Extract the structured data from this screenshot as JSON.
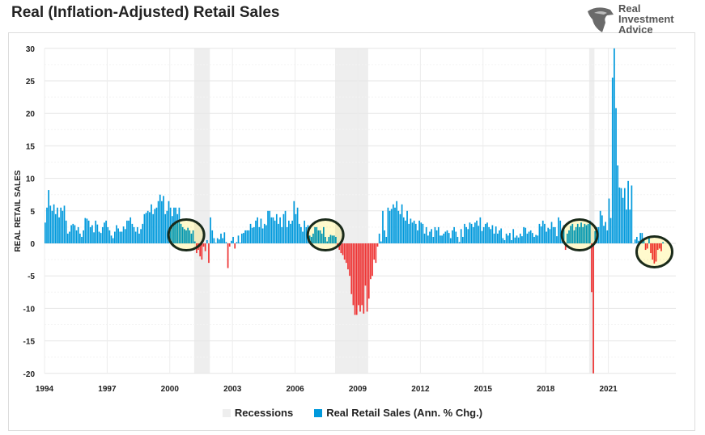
{
  "logo_text": [
    "Real",
    "Investment",
    "Advice"
  ],
  "chart_data": {
    "type": "bar",
    "title": "Real (Inflation-Adjusted) Retail Sales",
    "ylabel": "REAL RETAIL SALES",
    "xlabel": "",
    "ylim": [
      -20,
      30
    ],
    "yticks": [
      30,
      25,
      20,
      15,
      10,
      5,
      0,
      -5,
      -10,
      -15,
      -20
    ],
    "xticks": [
      "1994",
      "1997",
      "2000",
      "2003",
      "2006",
      "2009",
      "2012",
      "2015",
      "2018",
      "2021"
    ],
    "grid": true,
    "legend_position": "bottom",
    "legend": [
      "Recessions",
      "Real Retail Sales (Ann. % Chg.)"
    ],
    "colors": {
      "positive": "#0099dc",
      "negative": "#ee3333",
      "recession": "#eeeeee",
      "highlight_fill": "#fffacd",
      "highlight_stroke": "#1a2a1a"
    },
    "start": "1994-01",
    "frequency": "monthly",
    "recessions": [
      [
        "2001-03",
        "2001-11"
      ],
      [
        "2007-12",
        "2009-06"
      ],
      [
        "2020-02",
        "2020-04"
      ]
    ],
    "highlighted_periods": [
      "2000-10",
      "2007-06",
      "2019-08",
      "2023-03"
    ],
    "values": [
      3.2,
      5.5,
      8.2,
      5.8,
      5.0,
      6.0,
      4.5,
      5.5,
      4.0,
      5.5,
      5.0,
      5.8,
      3.5,
      1.5,
      1.8,
      2.8,
      3.0,
      2.8,
      2.0,
      2.5,
      1.5,
      1.0,
      2.0,
      3.9,
      3.8,
      3.5,
      2.5,
      2.8,
      1.7,
      3.5,
      2.9,
      1.8,
      1.6,
      2.5,
      3.2,
      3.5,
      2.5,
      2.0,
      1.2,
      0.8,
      1.8,
      2.8,
      2.3,
      1.8,
      1.8,
      2.6,
      2.2,
      3.5,
      3.5,
      4.0,
      3.0,
      2.5,
      1.8,
      2.5,
      1.5,
      2.2,
      3.0,
      4.5,
      4.7,
      5.0,
      4.8,
      6.0,
      4.5,
      5.3,
      5.5,
      6.5,
      7.5,
      6.5,
      7.3,
      4.5,
      5.0,
      6.5,
      5.5,
      4.2,
      5.5,
      5.5,
      4.5,
      5.5,
      3.0,
      2.5,
      2.2,
      2.0,
      2.4,
      2.0,
      1.5,
      2.0,
      0.3,
      -1.5,
      -1.0,
      -2.0,
      -2.5,
      -0.5,
      -1.2,
      0.5,
      -3.0,
      4.0,
      2.0,
      0.8,
      0.1,
      0.8,
      0.6,
      1.5,
      0.8,
      1.7,
      0.2,
      -3.8,
      -0.5,
      0.4,
      1.0,
      -0.8,
      0.2,
      1.2,
      0.1,
      1.5,
      1.6,
      2.0,
      2.0,
      2.0,
      3.0,
      2.4,
      2.5,
      3.5,
      4.0,
      2.5,
      3.8,
      2.3,
      3.0,
      2.8,
      5.0,
      5.0,
      4.0,
      4.0,
      3.5,
      4.5,
      3.0,
      4.0,
      2.5,
      4.5,
      5.0,
      2.5,
      3.5,
      3.0,
      3.5,
      6.5,
      4.5,
      5.5,
      3.0,
      2.5,
      1.8,
      3.5,
      2.5,
      2.8,
      1.2,
      1.0,
      1.5,
      2.5,
      2.5,
      2.0,
      2.0,
      1.5,
      2.5,
      1.0,
      0.3,
      1.0,
      1.3,
      1.2,
      1.2,
      1.0,
      -0.3,
      -1.0,
      -1.5,
      -1.8,
      -2.5,
      -3.0,
      -4.0,
      -5.0,
      -7.8,
      -9.5,
      -11.0,
      -11.0,
      -9.5,
      -10.5,
      -9.5,
      -10.8,
      -6.5,
      -10.5,
      -8.5,
      -5.5,
      -5.0,
      -2.5,
      -3.0,
      -0.5,
      1.5,
      0.3,
      5.0,
      2.0,
      1.0,
      5.5,
      5.0,
      5.3,
      6.0,
      5.5,
      6.5,
      5.0,
      4.5,
      6.0,
      4.0,
      3.5,
      5.0,
      3.0,
      3.8,
      3.2,
      3.5,
      3.0,
      2.0,
      3.5,
      3.2,
      3.0,
      1.5,
      2.5,
      1.2,
      1.8,
      2.2,
      1.0,
      2.5,
      2.0,
      2.5,
      1.2,
      1.2,
      1.5,
      1.8,
      2.0,
      1.6,
      0.8,
      2.0,
      2.5,
      1.8,
      1.0,
      0.2,
      2.2,
      1.0,
      3.0,
      2.5,
      2.2,
      3.2,
      3.0,
      2.5,
      3.2,
      3.5,
      2.7,
      4.0,
      1.9,
      2.5,
      3.0,
      3.2,
      2.5,
      2.2,
      2.8,
      1.5,
      2.6,
      1.5,
      2.0,
      2.3,
      0.8,
      0.5,
      1.5,
      1.2,
      1.6,
      0.5,
      2.2,
      0.9,
      1.2,
      0.9,
      1.5,
      1.1,
      2.5,
      2.4,
      1.5,
      1.8,
      2.0,
      1.6,
      1.0,
      1.3,
      1.2,
      3.0,
      2.6,
      3.5,
      3.0,
      1.8,
      2.4,
      2.2,
      3.3,
      2.5,
      2.5,
      1.1,
      4.0,
      3.5,
      2.0,
      2.8,
      -1.0,
      1.5,
      2.0,
      2.7,
      3.0,
      2.0,
      2.5,
      3.0,
      2.5,
      3.2,
      2.5,
      3.0,
      2.8,
      3.0,
      3.5,
      -7.5,
      -20.0,
      1.9,
      2.5,
      2.5,
      5.0,
      4.3,
      2.7,
      3.3,
      2.0,
      6.9,
      3.9,
      25.5,
      30.0,
      20.8,
      12.0,
      8.6,
      8.5,
      7.0,
      8.5,
      5.2,
      9.6,
      5.2,
      8.9,
      0.0,
      0.6,
      1.0,
      0.4,
      1.6,
      1.6,
      0.8,
      -1.0,
      -0.8,
      1.0,
      -1.5,
      -2.5,
      -3.1,
      -2.8,
      -1.0,
      -0.8,
      -1.2,
      0.2
    ]
  }
}
